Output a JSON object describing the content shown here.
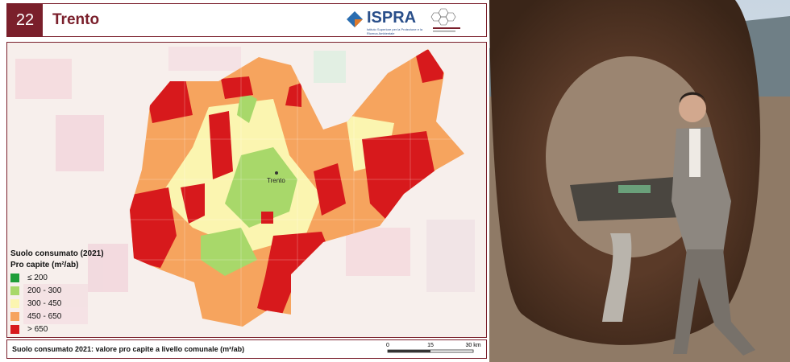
{
  "header": {
    "number": "22",
    "title": "Trento",
    "logo": "ISPRA",
    "logo_subtitle": "Istituto Superiore per la Protezione e la Ricerca Ambientale"
  },
  "map": {
    "city_label": "Trento",
    "legend": {
      "title": "Suolo consumato (2021)",
      "subtitle": "Pro capite (m²/ab)",
      "items": [
        {
          "label": "≤ 200",
          "color": "#1f9e3a"
        },
        {
          "label": "200 - 300",
          "color": "#a8d86a"
        },
        {
          "label": "300 - 450",
          "color": "#fbf5b0"
        },
        {
          "label": "450 - 650",
          "color": "#f6a45e"
        },
        {
          "label": "> 650",
          "color": "#d7191c"
        }
      ]
    },
    "scale": {
      "labels": [
        "0",
        "15",
        "30 km"
      ]
    }
  },
  "footer": "Suolo consumato 2021: valore pro capite a livello comunale (m²/ab)"
}
